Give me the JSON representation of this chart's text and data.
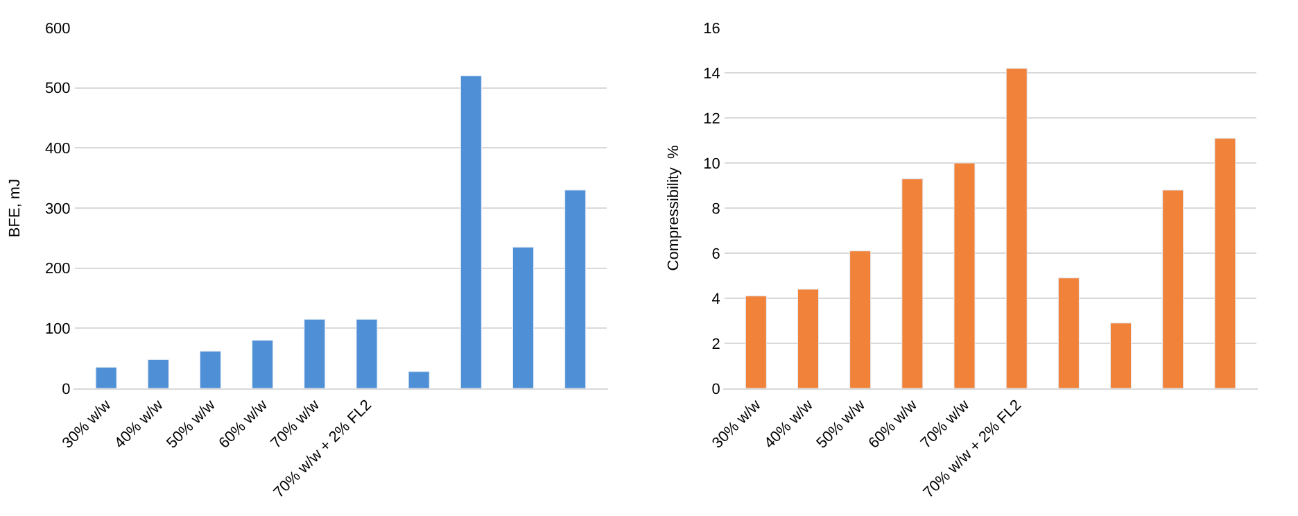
{
  "chart_data": [
    {
      "type": "bar",
      "ylabel": "BFE, mJ",
      "categories": [
        "30% w/w",
        "40% w/w",
        "50% w/w",
        "60% w/w",
        "70% w/w",
        "70% w/w + 2% FL2",
        null,
        null,
        null,
        null
      ],
      "series": [
        {
          "color": "#4f8fd6",
          "values": [
            35,
            48,
            62,
            80,
            115,
            115,
            28,
            520,
            235,
            330
          ]
        }
      ],
      "ylim": [
        0,
        600
      ],
      "yticks": [
        0,
        100,
        200,
        300,
        400,
        500,
        600
      ],
      "grid": "y"
    },
    {
      "type": "bar",
      "ylabel": "Compressibility  %",
      "categories": [
        "30% w/w",
        "40% w/w",
        "50% w/w",
        "60% w/w",
        "70% w/w",
        "70% w/w + 2% FL2",
        null,
        null,
        null,
        null
      ],
      "series": [
        {
          "color": "#f0823a",
          "values": [
            4.1,
            4.4,
            6.1,
            9.3,
            10,
            14.2,
            4.9,
            2.9,
            8.8,
            11.1
          ]
        }
      ],
      "ylim": [
        0,
        16
      ],
      "yticks": [
        0,
        2,
        4,
        6,
        8,
        10,
        12,
        14,
        16
      ],
      "grid": "y"
    }
  ]
}
